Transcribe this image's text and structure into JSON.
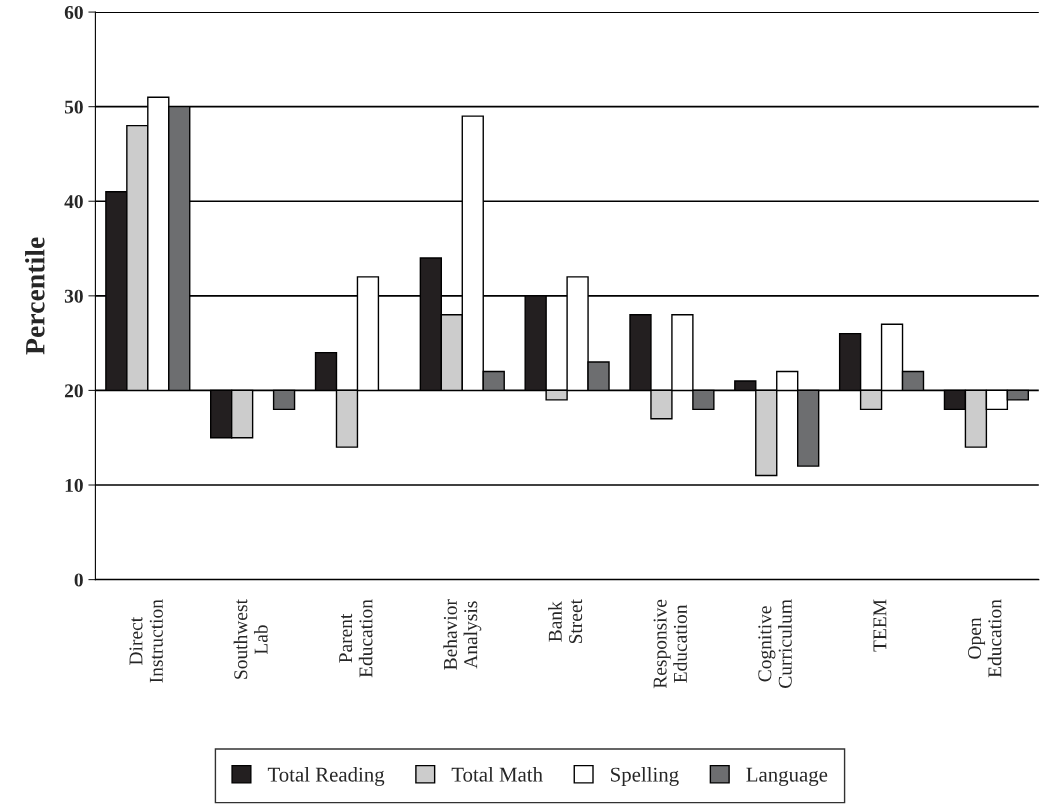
{
  "chart_data": {
    "type": "bar",
    "ylabel": "Percentile",
    "categories": [
      "Direct\nInstruction",
      "Southwest\nLab",
      "Parent\nEducation",
      "Behavior\nAnalysis",
      "Bank\nStreet",
      "Responsive\nEducation",
      "Cognitive\nCurriculum",
      "TEEM",
      "Open\nEducation"
    ],
    "series": [
      {
        "name": "Total Reading",
        "color": "#231f20",
        "base": [
          20,
          20,
          20,
          20,
          20,
          20,
          20,
          20,
          20
        ],
        "values": [
          21,
          -5,
          4,
          14,
          10,
          8,
          1,
          6,
          -2
        ]
      },
      {
        "name": "Total Math",
        "color": "#cccccc",
        "base": [
          20,
          20,
          20,
          20,
          20,
          20,
          20,
          20,
          20
        ],
        "values": [
          28,
          -5,
          -6,
          8,
          -1,
          -3,
          -9,
          -2,
          -6
        ]
      },
      {
        "name": "Spelling",
        "color": "#ffffff",
        "base": [
          20,
          null,
          20,
          20,
          20,
          20,
          20,
          20,
          20
        ],
        "values": [
          31,
          null,
          12,
          29,
          12,
          8,
          2,
          7,
          -2
        ]
      },
      {
        "name": "Language",
        "color": "#6d6e70",
        "base": [
          20,
          20,
          null,
          20,
          20,
          20,
          20,
          20,
          20
        ],
        "values": [
          30,
          -2,
          null,
          2,
          3,
          -2,
          -8,
          2,
          -1
        ]
      }
    ],
    "ylim": [
      0,
      60
    ],
    "yticks": [
      0,
      10,
      20,
      30,
      40,
      50,
      60
    ],
    "grid": "y",
    "legend": "bottom"
  }
}
